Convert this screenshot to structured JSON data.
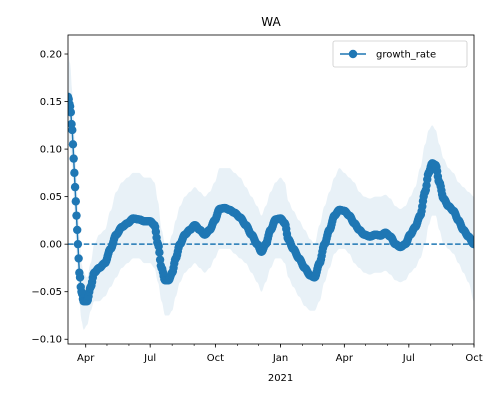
{
  "chart_data": {
    "type": "line",
    "title": "WA",
    "xlabel": "",
    "ylabel": "",
    "year_label": "2021",
    "x_axis_type": "date",
    "xlim": [
      "2020-03-07",
      "2021-10-01"
    ],
    "ylim": [
      -0.105,
      0.22
    ],
    "y_ticks": [
      -0.1,
      -0.05,
      0.0,
      0.05,
      0.1,
      0.15,
      0.2
    ],
    "y_tick_labels": [
      "−0.10",
      "−0.05",
      "0.00",
      "0.05",
      "0.10",
      "0.15",
      "0.20"
    ],
    "x_ticks": [
      {
        "date": "2020-04-01",
        "label": "Apr"
      },
      {
        "date": "2020-07-01",
        "label": "Jul"
      },
      {
        "date": "2020-10-01",
        "label": "Oct"
      },
      {
        "date": "2021-01-01",
        "label": "Jan"
      },
      {
        "date": "2021-04-01",
        "label": "Apr"
      },
      {
        "date": "2021-07-01",
        "label": "Jul"
      },
      {
        "date": "2021-10-01",
        "label": "Oct"
      }
    ],
    "reference_line": {
      "y": 0.0,
      "style": "dashed"
    },
    "legend": {
      "position": "top-right",
      "entries": [
        "growth_rate"
      ]
    },
    "grid": false,
    "series": [
      {
        "name": "growth_rate",
        "color": "#1f77b4",
        "marker": "circle",
        "band_color": "#1f77b4",
        "points": [
          {
            "x": "2020-03-07",
            "y": 0.155,
            "lo": 0.11,
            "hi": 0.2
          },
          {
            "x": "2020-03-10",
            "y": 0.145,
            "lo": 0.1,
            "hi": 0.19
          },
          {
            "x": "2020-03-13",
            "y": 0.12,
            "lo": 0.08,
            "hi": 0.16
          },
          {
            "x": "2020-03-15",
            "y": 0.09,
            "lo": 0.05,
            "hi": 0.13
          },
          {
            "x": "2020-03-17",
            "y": 0.06,
            "lo": 0.02,
            "hi": 0.1
          },
          {
            "x": "2020-03-19",
            "y": 0.03,
            "lo": -0.01,
            "hi": 0.07
          },
          {
            "x": "2020-03-21",
            "y": 0.0,
            "lo": -0.04,
            "hi": 0.04
          },
          {
            "x": "2020-03-23",
            "y": -0.03,
            "lo": -0.06,
            "hi": 0.01
          },
          {
            "x": "2020-03-26",
            "y": -0.05,
            "lo": -0.08,
            "hi": -0.02
          },
          {
            "x": "2020-03-29",
            "y": -0.06,
            "lo": -0.09,
            "hi": -0.03
          },
          {
            "x": "2020-04-03",
            "y": -0.06,
            "lo": -0.085,
            "hi": -0.035
          },
          {
            "x": "2020-04-08",
            "y": -0.045,
            "lo": -0.07,
            "hi": -0.02
          },
          {
            "x": "2020-04-13",
            "y": -0.03,
            "lo": -0.06,
            "hi": 0.0
          },
          {
            "x": "2020-04-20",
            "y": -0.025,
            "lo": -0.06,
            "hi": 0.01
          },
          {
            "x": "2020-04-28",
            "y": -0.02,
            "lo": -0.055,
            "hi": 0.015
          },
          {
            "x": "2020-05-06",
            "y": -0.005,
            "lo": -0.045,
            "hi": 0.035
          },
          {
            "x": "2020-05-14",
            "y": 0.01,
            "lo": -0.035,
            "hi": 0.055
          },
          {
            "x": "2020-05-22",
            "y": 0.018,
            "lo": -0.025,
            "hi": 0.065
          },
          {
            "x": "2020-05-30",
            "y": 0.022,
            "lo": -0.02,
            "hi": 0.07
          },
          {
            "x": "2020-06-07",
            "y": 0.027,
            "lo": -0.015,
            "hi": 0.075
          },
          {
            "x": "2020-06-15",
            "y": 0.026,
            "lo": -0.015,
            "hi": 0.075
          },
          {
            "x": "2020-06-23",
            "y": 0.024,
            "lo": -0.02,
            "hi": 0.07
          },
          {
            "x": "2020-07-01",
            "y": 0.024,
            "lo": -0.02,
            "hi": 0.07
          },
          {
            "x": "2020-07-07",
            "y": 0.02,
            "lo": -0.025,
            "hi": 0.065
          },
          {
            "x": "2020-07-12",
            "y": 0.0,
            "lo": -0.04,
            "hi": 0.045
          },
          {
            "x": "2020-07-17",
            "y": -0.025,
            "lo": -0.06,
            "hi": 0.015
          },
          {
            "x": "2020-07-22",
            "y": -0.038,
            "lo": -0.075,
            "hi": 0.0
          },
          {
            "x": "2020-07-27",
            "y": -0.038,
            "lo": -0.075,
            "hi": 0.0
          },
          {
            "x": "2020-08-01",
            "y": -0.03,
            "lo": -0.07,
            "hi": 0.01
          },
          {
            "x": "2020-08-06",
            "y": -0.015,
            "lo": -0.055,
            "hi": 0.025
          },
          {
            "x": "2020-08-12",
            "y": 0.0,
            "lo": -0.04,
            "hi": 0.04
          },
          {
            "x": "2020-08-19",
            "y": 0.01,
            "lo": -0.03,
            "hi": 0.05
          },
          {
            "x": "2020-08-26",
            "y": 0.015,
            "lo": -0.025,
            "hi": 0.055
          },
          {
            "x": "2020-09-02",
            "y": 0.02,
            "lo": -0.02,
            "hi": 0.06
          },
          {
            "x": "2020-09-09",
            "y": 0.015,
            "lo": -0.025,
            "hi": 0.055
          },
          {
            "x": "2020-09-16",
            "y": 0.01,
            "lo": -0.03,
            "hi": 0.05
          },
          {
            "x": "2020-09-23",
            "y": 0.015,
            "lo": -0.025,
            "hi": 0.055
          },
          {
            "x": "2020-09-30",
            "y": 0.025,
            "lo": -0.015,
            "hi": 0.065
          },
          {
            "x": "2020-10-07",
            "y": 0.037,
            "lo": -0.005,
            "hi": 0.08
          },
          {
            "x": "2020-10-14",
            "y": 0.038,
            "lo": -0.005,
            "hi": 0.08
          },
          {
            "x": "2020-10-21",
            "y": 0.036,
            "lo": -0.005,
            "hi": 0.08
          },
          {
            "x": "2020-10-28",
            "y": 0.033,
            "lo": -0.01,
            "hi": 0.075
          },
          {
            "x": "2020-11-05",
            "y": 0.028,
            "lo": -0.015,
            "hi": 0.07
          },
          {
            "x": "2020-11-13",
            "y": 0.02,
            "lo": -0.02,
            "hi": 0.06
          },
          {
            "x": "2020-11-21",
            "y": 0.01,
            "lo": -0.03,
            "hi": 0.05
          },
          {
            "x": "2020-11-29",
            "y": 0.0,
            "lo": -0.04,
            "hi": 0.04
          },
          {
            "x": "2020-12-05",
            "y": -0.008,
            "lo": -0.05,
            "hi": 0.03
          },
          {
            "x": "2020-12-11",
            "y": 0.0,
            "lo": -0.04,
            "hi": 0.04
          },
          {
            "x": "2020-12-18",
            "y": 0.015,
            "lo": -0.025,
            "hi": 0.055
          },
          {
            "x": "2020-12-25",
            "y": 0.026,
            "lo": -0.015,
            "hi": 0.065
          },
          {
            "x": "2021-01-01",
            "y": 0.027,
            "lo": -0.015,
            "hi": 0.07
          },
          {
            "x": "2021-01-07",
            "y": 0.022,
            "lo": -0.02,
            "hi": 0.065
          },
          {
            "x": "2021-01-12",
            "y": 0.005,
            "lo": -0.035,
            "hi": 0.045
          },
          {
            "x": "2021-01-19",
            "y": -0.005,
            "lo": -0.045,
            "hi": 0.035
          },
          {
            "x": "2021-01-27",
            "y": -0.015,
            "lo": -0.055,
            "hi": 0.025
          },
          {
            "x": "2021-02-04",
            "y": -0.025,
            "lo": -0.065,
            "hi": 0.015
          },
          {
            "x": "2021-02-12",
            "y": -0.033,
            "lo": -0.07,
            "hi": 0.005
          },
          {
            "x": "2021-02-18",
            "y": -0.035,
            "lo": -0.07,
            "hi": 0.0
          },
          {
            "x": "2021-02-25",
            "y": -0.02,
            "lo": -0.06,
            "hi": 0.02
          },
          {
            "x": "2021-03-04",
            "y": 0.0,
            "lo": -0.04,
            "hi": 0.04
          },
          {
            "x": "2021-03-11",
            "y": 0.015,
            "lo": -0.025,
            "hi": 0.055
          },
          {
            "x": "2021-03-18",
            "y": 0.03,
            "lo": -0.01,
            "hi": 0.07
          },
          {
            "x": "2021-03-25",
            "y": 0.036,
            "lo": -0.005,
            "hi": 0.08
          },
          {
            "x": "2021-04-01",
            "y": 0.035,
            "lo": -0.005,
            "hi": 0.075
          },
          {
            "x": "2021-04-08",
            "y": 0.03,
            "lo": -0.01,
            "hi": 0.07
          },
          {
            "x": "2021-04-15",
            "y": 0.022,
            "lo": -0.02,
            "hi": 0.065
          },
          {
            "x": "2021-04-22",
            "y": 0.015,
            "lo": -0.025,
            "hi": 0.055
          },
          {
            "x": "2021-04-29",
            "y": 0.01,
            "lo": -0.03,
            "hi": 0.05
          },
          {
            "x": "2021-05-07",
            "y": 0.008,
            "lo": -0.032,
            "hi": 0.048
          },
          {
            "x": "2021-05-15",
            "y": 0.01,
            "lo": -0.03,
            "hi": 0.05
          },
          {
            "x": "2021-05-22",
            "y": 0.009,
            "lo": -0.03,
            "hi": 0.05
          },
          {
            "x": "2021-05-29",
            "y": 0.012,
            "lo": -0.028,
            "hi": 0.052
          },
          {
            "x": "2021-06-05",
            "y": 0.008,
            "lo": -0.032,
            "hi": 0.048
          },
          {
            "x": "2021-06-12",
            "y": 0.0,
            "lo": -0.038,
            "hi": 0.04
          },
          {
            "x": "2021-06-19",
            "y": -0.003,
            "lo": -0.04,
            "hi": 0.037
          },
          {
            "x": "2021-06-26",
            "y": 0.0,
            "lo": -0.038,
            "hi": 0.04
          },
          {
            "x": "2021-07-03",
            "y": 0.01,
            "lo": -0.03,
            "hi": 0.05
          },
          {
            "x": "2021-07-10",
            "y": 0.018,
            "lo": -0.025,
            "hi": 0.06
          },
          {
            "x": "2021-07-17",
            "y": 0.03,
            "lo": -0.015,
            "hi": 0.08
          },
          {
            "x": "2021-07-24",
            "y": 0.055,
            "lo": 0.0,
            "hi": 0.105
          },
          {
            "x": "2021-07-29",
            "y": 0.075,
            "lo": 0.02,
            "hi": 0.12
          },
          {
            "x": "2021-08-03",
            "y": 0.085,
            "lo": 0.03,
            "hi": 0.125
          },
          {
            "x": "2021-08-08",
            "y": 0.083,
            "lo": 0.03,
            "hi": 0.12
          },
          {
            "x": "2021-08-13",
            "y": 0.065,
            "lo": 0.015,
            "hi": 0.105
          },
          {
            "x": "2021-08-19",
            "y": 0.048,
            "lo": 0.0,
            "hi": 0.09
          },
          {
            "x": "2021-08-26",
            "y": 0.04,
            "lo": -0.005,
            "hi": 0.08
          },
          {
            "x": "2021-09-02",
            "y": 0.035,
            "lo": -0.01,
            "hi": 0.075
          },
          {
            "x": "2021-09-09",
            "y": 0.025,
            "lo": -0.02,
            "hi": 0.065
          },
          {
            "x": "2021-09-16",
            "y": 0.015,
            "lo": -0.03,
            "hi": 0.06
          },
          {
            "x": "2021-09-23",
            "y": 0.008,
            "lo": -0.04,
            "hi": 0.055
          },
          {
            "x": "2021-10-01",
            "y": 0.0,
            "lo": -0.06,
            "hi": 0.05
          }
        ]
      }
    ]
  }
}
